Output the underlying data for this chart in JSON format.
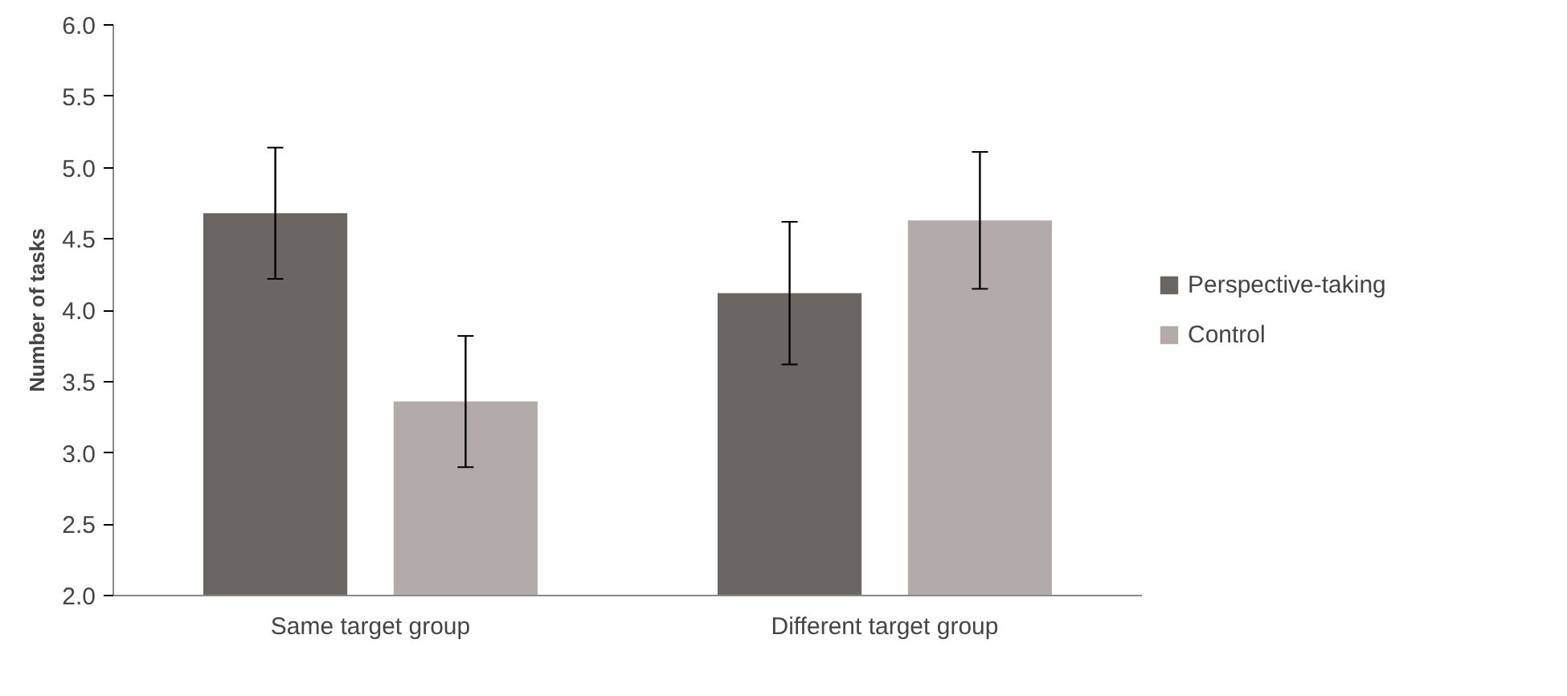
{
  "chart_data": {
    "type": "bar",
    "ylabel": "Number of tasks",
    "categories": [
      "Same target group",
      "Different target group"
    ],
    "series": [
      {
        "name": "Perspective-taking",
        "color": "#6b6662",
        "values": [
          4.68,
          4.12
        ],
        "errors": [
          0.46,
          0.5
        ]
      },
      {
        "name": "Control",
        "color": "#b2aba9",
        "values": [
          3.36,
          4.63
        ],
        "errors": [
          0.46,
          0.48
        ]
      }
    ],
    "ylim": [
      2.0,
      6.0
    ],
    "yticks": [
      {
        "value": 2,
        "label": "2.0"
      },
      {
        "value": 2.5,
        "label": "2.5"
      },
      {
        "value": 3,
        "label": "3.0"
      },
      {
        "value": 3.5,
        "label": "3.5"
      },
      {
        "value": 4,
        "label": "4.0"
      },
      {
        "value": 4.5,
        "label": "4.5"
      },
      {
        "value": 5,
        "label": "5.0"
      },
      {
        "value": 5.5,
        "label": "5.5"
      },
      {
        "value": 6,
        "label": "6.0"
      }
    ],
    "grid": false,
    "legend": "right"
  }
}
